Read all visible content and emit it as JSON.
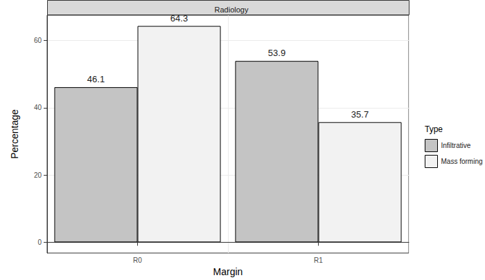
{
  "chart_data": {
    "type": "bar",
    "title": "Radiology",
    "x_label": "Margin",
    "y_label": "Percentage",
    "legend_title": "Type",
    "categories": [
      "R0",
      "R1"
    ],
    "series": [
      {
        "name": "Infiltrative",
        "color": "#c4c4c4",
        "values": [
          46.1,
          53.9
        ]
      },
      {
        "name": "Mass forming",
        "color": "#f2f2f2",
        "values": [
          64.3,
          35.7
        ]
      }
    ],
    "ylim": [
      -3.2,
      67.5
    ],
    "yticks": [
      0,
      20,
      40,
      60
    ],
    "grid": true,
    "legend": "right",
    "data_labels": true
  }
}
